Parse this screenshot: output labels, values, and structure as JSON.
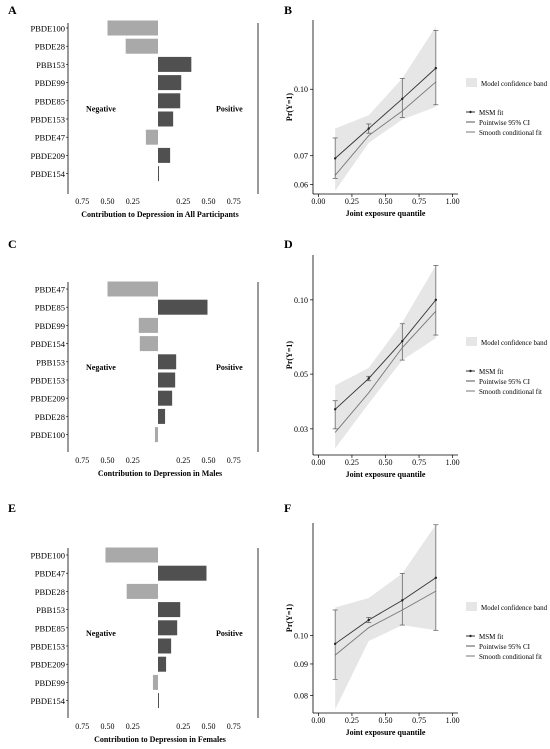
{
  "panel_letters": [
    "A",
    "B",
    "C",
    "D",
    "E",
    "F"
  ],
  "colors": {
    "negative": "#a9a9a9",
    "positive": "#505050",
    "band": "#e6e6e6",
    "line_msm": "#333333",
    "line_smooth": "#777777",
    "axis": "#000000"
  },
  "chart_data": [
    {
      "panel": "A",
      "type": "bar",
      "orientation": "horizontal",
      "categories": [
        "PBDE100",
        "PBDE28",
        "PBB153",
        "PBDE99",
        "PBDE85",
        "PBDE153",
        "PBDE47",
        "PBDE209",
        "PBDE154"
      ],
      "values": [
        -0.5,
        -0.32,
        0.33,
        0.23,
        0.22,
        0.15,
        -0.12,
        0.12,
        0.01
      ],
      "xlim": [
        -1,
        1
      ],
      "tick_values": [
        -0.75,
        -0.5,
        -0.25,
        0.25,
        0.5,
        0.75
      ],
      "tick_labels": [
        "0.75",
        "0.50",
        "0.25",
        "0.25",
        "0.50",
        "0.75"
      ],
      "xlabel": "Contribution to Depression in All Participants",
      "annotations": {
        "negative": "Negative",
        "positive": "Positive"
      }
    },
    {
      "panel": "B",
      "type": "line",
      "x": [
        0.125,
        0.375,
        0.625,
        0.875
      ],
      "series": [
        {
          "name": "MSM fit",
          "values": [
            0.069,
            0.081,
            0.095,
            0.112
          ]
        },
        {
          "name": "Smooth conditional fit",
          "values": [
            0.063,
            0.078,
            0.089,
            0.104
          ]
        }
      ],
      "ci": [
        [
          0.062,
          0.077
        ],
        [
          0.079,
          0.083
        ],
        [
          0.086,
          0.106
        ],
        [
          0.092,
          0.137
        ]
      ],
      "band_lower": [
        0.058,
        0.075,
        0.085,
        0.091
      ],
      "band_upper": [
        0.081,
        0.087,
        0.106,
        0.14
      ],
      "y_ticks": [
        0.06,
        0.07,
        0.1
      ],
      "y_tick_labels": [
        "0.06",
        "0.07",
        "0.10"
      ],
      "log_y": true,
      "ylim": [
        0.057,
        0.145
      ],
      "xlim": [
        -0.04,
        1.04
      ],
      "x_ticks": [
        0,
        0.25,
        0.5,
        0.75,
        1
      ],
      "x_tick_labels": [
        "0.00",
        "0.25",
        "0.50",
        "0.75",
        "1.00"
      ],
      "xlabel": "Joint exposure quantile",
      "ylabel": "Pr(Y=1)",
      "legend": {
        "band": "Model confidence band",
        "items": [
          "MSM fit",
          "Pointwise 95% CI",
          "Smooth conditional fit"
        ]
      }
    },
    {
      "panel": "C",
      "type": "bar",
      "orientation": "horizontal",
      "categories": [
        "PBDE47",
        "PBDE85",
        "PBDE99",
        "PBDE154",
        "PBB153",
        "PBDE153",
        "PBDE209",
        "PBDE28",
        "PBDE100"
      ],
      "values": [
        -0.5,
        0.49,
        -0.19,
        -0.18,
        0.18,
        0.17,
        0.14,
        0.07,
        -0.03
      ],
      "xlim": [
        -1,
        1
      ],
      "tick_values": [
        -0.75,
        -0.5,
        -0.25,
        0.25,
        0.5,
        0.75
      ],
      "tick_labels": [
        "0.75",
        "0.50",
        "0.25",
        "0.25",
        "0.50",
        "0.75"
      ],
      "xlabel": "Contribution to Depression in Males",
      "annotations": {
        "negative": "Negative",
        "positive": "Positive"
      }
    },
    {
      "panel": "D",
      "type": "line",
      "x": [
        0.125,
        0.375,
        0.625,
        0.875
      ],
      "series": [
        {
          "name": "MSM fit",
          "values": [
            0.036,
            0.048,
            0.068,
            0.1
          ]
        },
        {
          "name": "Smooth conditional fit",
          "values": [
            0.029,
            0.042,
            0.064,
            0.09
          ]
        }
      ],
      "ci": [
        [
          0.03,
          0.039
        ],
        [
          0.047,
          0.049
        ],
        [
          0.057,
          0.08
        ],
        [
          0.072,
          0.138
        ]
      ],
      "band_lower": [
        0.025,
        0.038,
        0.057,
        0.07
      ],
      "band_upper": [
        0.045,
        0.053,
        0.081,
        0.138
      ],
      "y_ticks": [
        0.03,
        0.05,
        0.1
      ],
      "y_tick_labels": [
        "0.03",
        "0.05",
        "0.10"
      ],
      "log_y": true,
      "ylim": [
        0.0235,
        0.152
      ],
      "xlim": [
        -0.04,
        1.04
      ],
      "x_ticks": [
        0,
        0.25,
        0.5,
        0.75,
        1
      ],
      "x_tick_labels": [
        "0.00",
        "0.25",
        "0.50",
        "0.75",
        "1.00"
      ],
      "xlabel": "Joint exposure quantile",
      "ylabel": "Pr(Y=1)",
      "legend": {
        "band": "Model confidence band",
        "items": [
          "MSM fit",
          "Pointwise 95% CI",
          "Smooth conditional fit"
        ]
      }
    },
    {
      "panel": "E",
      "type": "bar",
      "orientation": "horizontal",
      "categories": [
        "PBDE100",
        "PBDE47",
        "PBDE28",
        "PBB153",
        "PBDE85",
        "PBDE153",
        "PBDE209",
        "PBDE99",
        "PBDE154"
      ],
      "values": [
        -0.52,
        0.48,
        -0.31,
        0.22,
        0.19,
        0.13,
        0.08,
        -0.05,
        0.0
      ],
      "xlim": [
        -1,
        1
      ],
      "tick_values": [
        -0.75,
        -0.5,
        -0.25,
        0.25,
        0.5,
        0.75
      ],
      "tick_labels": [
        "0.75",
        "0.50",
        "0.25",
        "0.25",
        "0.50",
        "0.75"
      ],
      "xlabel": "Contribution to Depression in Females",
      "annotations": {
        "negative": "Negative",
        "positive": "Positive"
      }
    },
    {
      "panel": "F",
      "type": "line",
      "x": [
        0.125,
        0.375,
        0.625,
        0.875
      ],
      "series": [
        {
          "name": "MSM fit",
          "values": [
            0.097,
            0.106,
            0.114,
            0.124
          ]
        },
        {
          "name": "Smooth conditional fit",
          "values": [
            0.093,
            0.103,
            0.11,
            0.118
          ]
        }
      ],
      "ci": [
        [
          0.085,
          0.11
        ],
        [
          0.105,
          0.107
        ],
        [
          0.104,
          0.126
        ],
        [
          0.102,
          0.151
        ]
      ],
      "band_lower": [
        0.076,
        0.098,
        0.104,
        0.102
      ],
      "band_upper": [
        0.111,
        0.115,
        0.126,
        0.151
      ],
      "y_ticks": [
        0.08,
        0.09,
        0.1
      ],
      "y_tick_labels": [
        "0.08",
        "0.09",
        "0.10"
      ],
      "log_y": true,
      "ylim": [
        0.075,
        0.152
      ],
      "xlim": [
        -0.04,
        1.04
      ],
      "x_ticks": [
        0,
        0.25,
        0.5,
        0.75,
        1
      ],
      "x_tick_labels": [
        "0.00",
        "0.25",
        "0.50",
        "0.75",
        "1.00"
      ],
      "xlabel": "Joint exposure quantile",
      "ylabel": "Pr(Y=1)",
      "legend": {
        "band": "Model confidence band",
        "items": [
          "MSM fit",
          "Pointwise 95% CI",
          "Smooth conditional fit"
        ]
      }
    }
  ]
}
